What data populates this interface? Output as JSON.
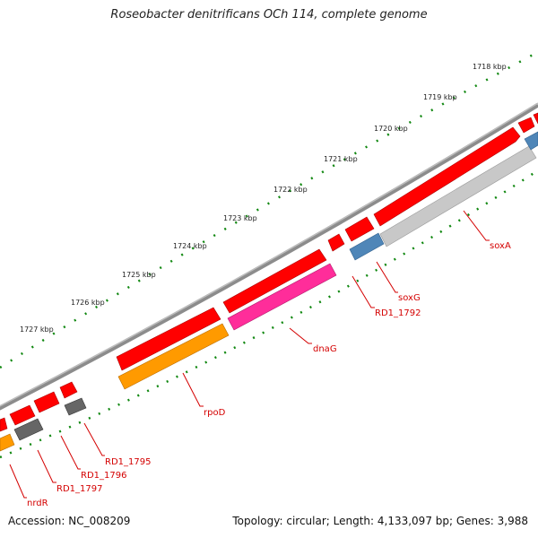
{
  "title": "Roseobacter denitrificans OCh 114, complete genome",
  "accession": "Accession: NC_008209",
  "summary": "Topology: circular; Length: 4,133,097 bp; Genes: 3,988",
  "colors": {
    "forward_cds": "#ff0000",
    "rna": "#666666",
    "backbone": "#8c8c8c",
    "tick": "#118811",
    "label": "#d40000"
  },
  "scale_labels": [
    "1718 kbp",
    "1719 kbp",
    "1720 kbp",
    "1721 kbp",
    "1722 kbp",
    "1723 kbp",
    "1724 kbp",
    "1725 kbp",
    "1726 kbp",
    "1727 kbp"
  ],
  "genes": [
    {
      "name": "soxA",
      "color": "#c8c8c8"
    },
    {
      "name": "soxG",
      "color": "#4f86b8"
    },
    {
      "name": "RD1_1792",
      "color": "#ff0000"
    },
    {
      "name": "dnaG",
      "color": "#ff2d9a"
    },
    {
      "name": "rpoD",
      "color": "#ff9a00"
    },
    {
      "name": "RD1_1795",
      "color": "#666666"
    },
    {
      "name": "RD1_1796",
      "color": "#666666"
    },
    {
      "name": "RD1_1797",
      "color": "#ff0000"
    },
    {
      "name": "nrdR",
      "color": "#ff9a00"
    }
  ]
}
